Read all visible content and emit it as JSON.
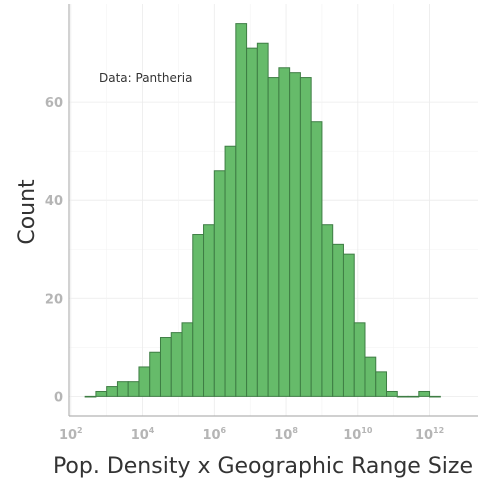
{
  "chart_data": {
    "type": "bar",
    "subtype": "histogram",
    "title": "",
    "xlabel": "Pop. Density x Geographic Range Size",
    "ylabel": "Count",
    "annotation": "Data: Pantheria",
    "x_scale": "log10",
    "xlim_log10": [
      1.95,
      13.35
    ],
    "ylim": [
      -4,
      80
    ],
    "grid": true,
    "legend": "none",
    "bar_fill": "#66BB6A",
    "bar_stroke": "#3E7D44",
    "x_ticks": [
      {
        "base": "10",
        "exp": "2",
        "log10": 2
      },
      {
        "base": "10",
        "exp": "4",
        "log10": 4
      },
      {
        "base": "10",
        "exp": "6",
        "log10": 6
      },
      {
        "base": "10",
        "exp": "8",
        "log10": 8
      },
      {
        "base": "10",
        "exp": "10",
        "log10": 10
      },
      {
        "base": "10",
        "exp": "12",
        "log10": 12
      }
    ],
    "y_ticks": [
      "0",
      "20",
      "40",
      "60"
    ],
    "y_tick_values": [
      0,
      20,
      40,
      60
    ],
    "bin_start_log10": 2.4,
    "bin_width_log10": 0.3,
    "counts": [
      0,
      1,
      2,
      3,
      3,
      6,
      9,
      12,
      13,
      15,
      33,
      35,
      46,
      51,
      76,
      71,
      72,
      65,
      67,
      66,
      65,
      56,
      35,
      31,
      29,
      15,
      8,
      5,
      1,
      0,
      0,
      1,
      0
    ]
  }
}
